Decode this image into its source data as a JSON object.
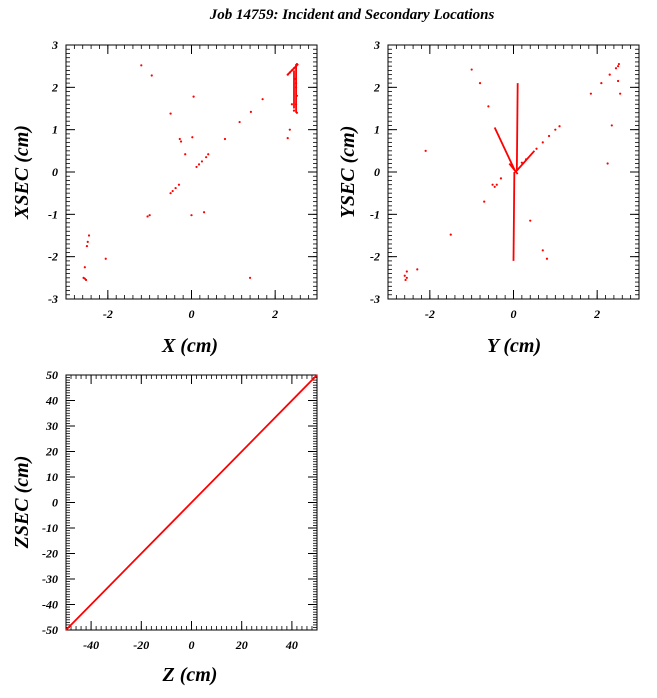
{
  "title": "Job 14759: Incident and Secondary Locations",
  "colors": {
    "points": "#ff0000",
    "frame": "#000000"
  },
  "chart_data": [
    {
      "type": "scatter",
      "xlabel": "X (cm)",
      "ylabel": "XSEC (cm)",
      "xlim": [
        -3,
        3
      ],
      "ylim": [
        -3,
        3
      ],
      "xticks": [
        -2,
        0,
        2
      ],
      "yticks": [
        -3,
        -2,
        -1,
        0,
        1,
        2,
        3
      ],
      "xtick_labels": [
        "-2",
        "0",
        "2"
      ],
      "ytick_labels": [
        "-3",
        "-2",
        "-1",
        "0",
        "1",
        "2",
        "3"
      ],
      "grid": false,
      "points": [
        [
          -1.2,
          2.52
        ],
        [
          -0.95,
          2.28
        ],
        [
          -0.5,
          1.38
        ],
        [
          0.05,
          1.78
        ],
        [
          0.02,
          0.82
        ],
        [
          -0.28,
          0.78
        ],
        [
          -0.25,
          0.72
        ],
        [
          -0.15,
          0.42
        ],
        [
          0.4,
          0.42
        ],
        [
          0.35,
          0.35
        ],
        [
          0.25,
          0.25
        ],
        [
          0.18,
          0.18
        ],
        [
          0.12,
          0.12
        ],
        [
          -0.3,
          -0.3
        ],
        [
          -0.38,
          -0.38
        ],
        [
          -0.45,
          -0.45
        ],
        [
          -0.5,
          -0.5
        ],
        [
          0.8,
          0.78
        ],
        [
          1.15,
          1.18
        ],
        [
          1.42,
          1.42
        ],
        [
          1.7,
          1.72
        ],
        [
          0.3,
          -0.95
        ],
        [
          0.0,
          -1.02
        ],
        [
          -1.05,
          -1.05
        ],
        [
          -1.0,
          -1.02
        ],
        [
          -2.45,
          -1.5
        ],
        [
          -2.48,
          -1.65
        ],
        [
          -2.5,
          -1.75
        ],
        [
          -2.05,
          -2.05
        ],
        [
          -2.55,
          -2.25
        ],
        [
          -2.58,
          -2.5
        ],
        [
          -2.55,
          -2.52
        ],
        [
          -2.52,
          -2.55
        ],
        [
          1.4,
          -2.5
        ],
        [
          2.3,
          2.3
        ],
        [
          2.35,
          2.35
        ],
        [
          2.4,
          2.4
        ],
        [
          2.45,
          2.45
        ],
        [
          2.5,
          2.5
        ],
        [
          2.52,
          2.55
        ],
        [
          2.48,
          2.2
        ],
        [
          2.5,
          2.0
        ],
        [
          2.52,
          1.8
        ],
        [
          2.5,
          1.6
        ],
        [
          2.52,
          1.4
        ],
        [
          2.45,
          1.45
        ],
        [
          2.4,
          1.6
        ],
        [
          2.35,
          1.0
        ],
        [
          2.3,
          0.8
        ],
        [
          2.5,
          2.1
        ]
      ],
      "segments": [
        [
          [
            2.5,
            1.4
          ],
          [
            2.5,
            2.55
          ]
        ],
        [
          [
            2.45,
            1.5
          ],
          [
            2.45,
            2.4
          ]
        ],
        [
          [
            2.3,
            2.3
          ],
          [
            2.55,
            2.55
          ]
        ]
      ]
    },
    {
      "type": "scatter",
      "xlabel": "Y (cm)",
      "ylabel": "YSEC (cm)",
      "xlim": [
        -3,
        3
      ],
      "ylim": [
        -3,
        3
      ],
      "xticks": [
        -2,
        0,
        2
      ],
      "yticks": [
        -3,
        -2,
        -1,
        0,
        1,
        2,
        3
      ],
      "xtick_labels": [
        "-2",
        "0",
        "2"
      ],
      "ytick_labels": [
        "-3",
        "-2",
        "-1",
        "0",
        "1",
        "2",
        "3"
      ],
      "grid": false,
      "points": [
        [
          -1.0,
          2.42
        ],
        [
          -0.8,
          2.1
        ],
        [
          -0.6,
          1.55
        ],
        [
          -2.1,
          0.5
        ],
        [
          -1.5,
          -1.48
        ],
        [
          -0.7,
          -0.7
        ],
        [
          -0.4,
          -0.3
        ],
        [
          -0.45,
          -0.35
        ],
        [
          -0.5,
          -0.3
        ],
        [
          -0.3,
          -0.15
        ],
        [
          0.4,
          -1.15
        ],
        [
          0.7,
          -1.85
        ],
        [
          0.8,
          -2.05
        ],
        [
          -2.55,
          -2.5
        ],
        [
          -2.58,
          -2.55
        ],
        [
          -2.6,
          -2.45
        ],
        [
          -2.55,
          -2.35
        ],
        [
          -2.3,
          -2.3
        ],
        [
          2.25,
          0.2
        ],
        [
          2.35,
          1.1
        ],
        [
          1.85,
          1.85
        ],
        [
          2.1,
          2.1
        ],
        [
          2.3,
          2.3
        ],
        [
          2.45,
          2.45
        ],
        [
          2.5,
          2.5
        ],
        [
          2.52,
          2.55
        ],
        [
          2.5,
          2.15
        ],
        [
          2.55,
          1.85
        ],
        [
          0.55,
          0.55
        ],
        [
          0.7,
          0.7
        ],
        [
          0.85,
          0.85
        ],
        [
          1.0,
          1.0
        ],
        [
          1.1,
          1.08
        ],
        [
          0.3,
          0.3
        ],
        [
          0.2,
          0.22
        ]
      ],
      "segments": [
        [
          [
            0.08,
            0.05
          ],
          [
            0.1,
            2.1
          ]
        ],
        [
          [
            0.0,
            -2.1
          ],
          [
            0.02,
            0.0
          ]
        ],
        [
          [
            -0.45,
            1.05
          ],
          [
            0.05,
            0.0
          ]
        ],
        [
          [
            0.05,
            0.0
          ],
          [
            0.5,
            0.5
          ]
        ],
        [
          [
            -0.1,
            0.2
          ],
          [
            0.1,
            -0.05
          ]
        ]
      ]
    },
    {
      "type": "scatter",
      "xlabel": "Z (cm)",
      "ylabel": "ZSEC (cm)",
      "xlim": [
        -50,
        50
      ],
      "ylim": [
        -50,
        50
      ],
      "xticks": [
        -40,
        -20,
        0,
        20,
        40
      ],
      "yticks": [
        -50,
        -40,
        -30,
        -20,
        -10,
        0,
        10,
        20,
        30,
        40,
        50
      ],
      "xtick_labels": [
        "-40",
        "-20",
        "0",
        "20",
        "40"
      ],
      "ytick_labels": [
        "-50",
        "-40",
        "-30",
        "-20",
        "-10",
        "0",
        "10",
        "20",
        "30",
        "40",
        "50"
      ],
      "grid": false,
      "points": [],
      "segments": [
        [
          [
            -50,
            -50
          ],
          [
            50,
            50
          ]
        ]
      ]
    }
  ]
}
